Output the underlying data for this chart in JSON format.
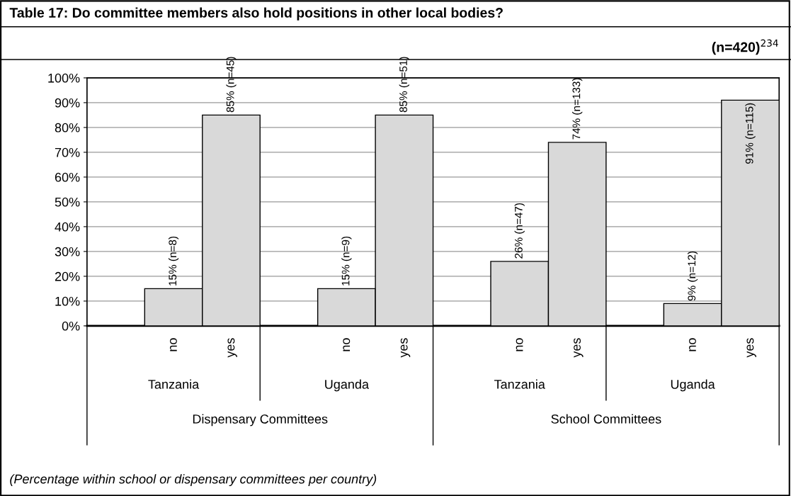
{
  "chart_data": {
    "type": "bar",
    "title": "Table 17: Do committee members also hold positions in other local bodies?",
    "subtitle": "(n=420)$^{234}$",
    "categories": [
      "no",
      "yes",
      "no",
      "yes",
      "no",
      "yes",
      "no",
      "yes"
    ],
    "values": [
      15,
      85,
      15,
      85,
      26,
      74,
      9,
      91
    ],
    "value_labels": [
      "15% (n=8)",
      "85% (n=45)",
      "15% (n=9)",
      "85% (n=51)",
      "26% (n=47)",
      "74% (n=133)",
      "9% (n=12)",
      "91% (n=115)"
    ],
    "color": "#d9d9d9",
    "ylim": [
      0,
      100
    ],
    "yticks": [
      {
        "value": 0,
        "label": "0%"
      },
      {
        "value": 10,
        "label": "10%"
      },
      {
        "value": 20,
        "label": "20%"
      },
      {
        "value": 30,
        "label": "30%"
      },
      {
        "value": 40,
        "label": "40%"
      },
      {
        "value": 50,
        "label": "50%"
      },
      {
        "value": 60,
        "label": "60%"
      },
      {
        "value": 70,
        "label": "70%"
      },
      {
        "value": 80,
        "label": "80%"
      },
      {
        "value": 90,
        "label": "90%"
      },
      {
        "value": 100,
        "label": "100%"
      }
    ],
    "grid": "y",
    "annotations": [
      "Tanzania",
      "Uganda",
      "Tanzania",
      "Uganda",
      "Dispensary Committees",
      "School Committees",
      "(Percentage within school or dispensary committees per country)"
    ]
  }
}
